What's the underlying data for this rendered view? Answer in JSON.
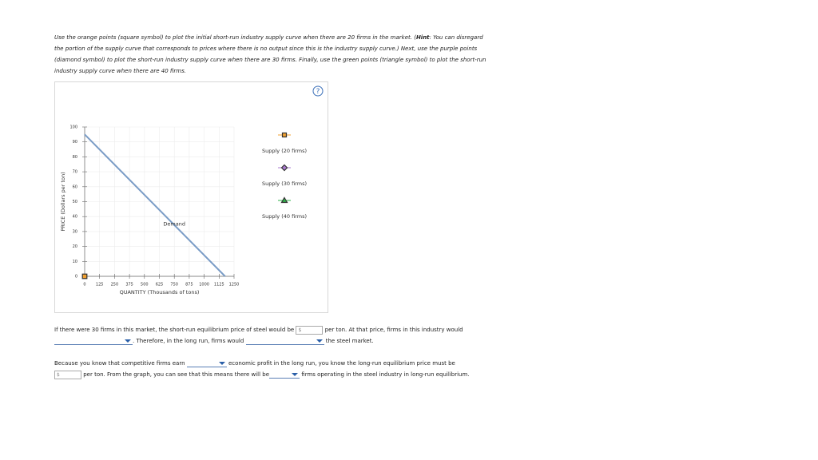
{
  "instructions": {
    "before": "Use the orange points (square symbol) to plot the initial short-run industry supply curve when there are 20 firms in the market. (",
    "hint": "Hint",
    "after": ": You can disregard the portion of the supply curve that corresponds to prices where there is no output since this is the industry supply curve.) Next, use the purple points (diamond symbol) to plot the short-run industry supply curve when there are 30 firms. Finally, use the green points (triangle symbol) to plot the short-run industry supply curve when there are 40 firms."
  },
  "help": "?",
  "chart_data": {
    "type": "line",
    "xlabel": "QUANTITY (Thousands of tons)",
    "ylabel": "PRICE (Dollars per ton)",
    "xlim": [
      0,
      1250
    ],
    "xticks": [
      0,
      125,
      250,
      375,
      500,
      625,
      750,
      875,
      1000,
      1125,
      1250
    ],
    "ylim": [
      0,
      100
    ],
    "yticks": [
      0,
      10,
      20,
      30,
      40,
      50,
      60,
      70,
      80,
      90,
      100
    ],
    "grid": true,
    "demand": {
      "label": "Demand",
      "color": "#7a9cc6",
      "x": [
        0,
        1175
      ],
      "values": [
        95,
        0
      ]
    },
    "series": [
      {
        "name": "Supply (20 firms)",
        "color": "#f0a030",
        "marker": "square",
        "x": [
          0
        ],
        "values": [
          0
        ]
      },
      {
        "name": "Supply (30 firms)",
        "color": "#a97ad0",
        "marker": "diamond",
        "x": [],
        "values": []
      },
      {
        "name": "Supply (40 firms)",
        "color": "#2fb34a",
        "marker": "triangle",
        "x": [],
        "values": []
      }
    ]
  },
  "questions": [
    [
      "If there were 30 firms in this market, the short-run equilibrium price of steel would be",
      "$",
      "per ton. At that price, firms in this industry would",
      ". Therefore, in the long run, firms would",
      "the steel market."
    ],
    [
      "Because you know that competitive firms earn",
      "economic profit in the long run, you know the long-run equilibrium price must be",
      "$",
      "per ton. From the graph, you can see that this means there will be",
      "firms operating in the steel industry in long-run equilibrium."
    ]
  ]
}
